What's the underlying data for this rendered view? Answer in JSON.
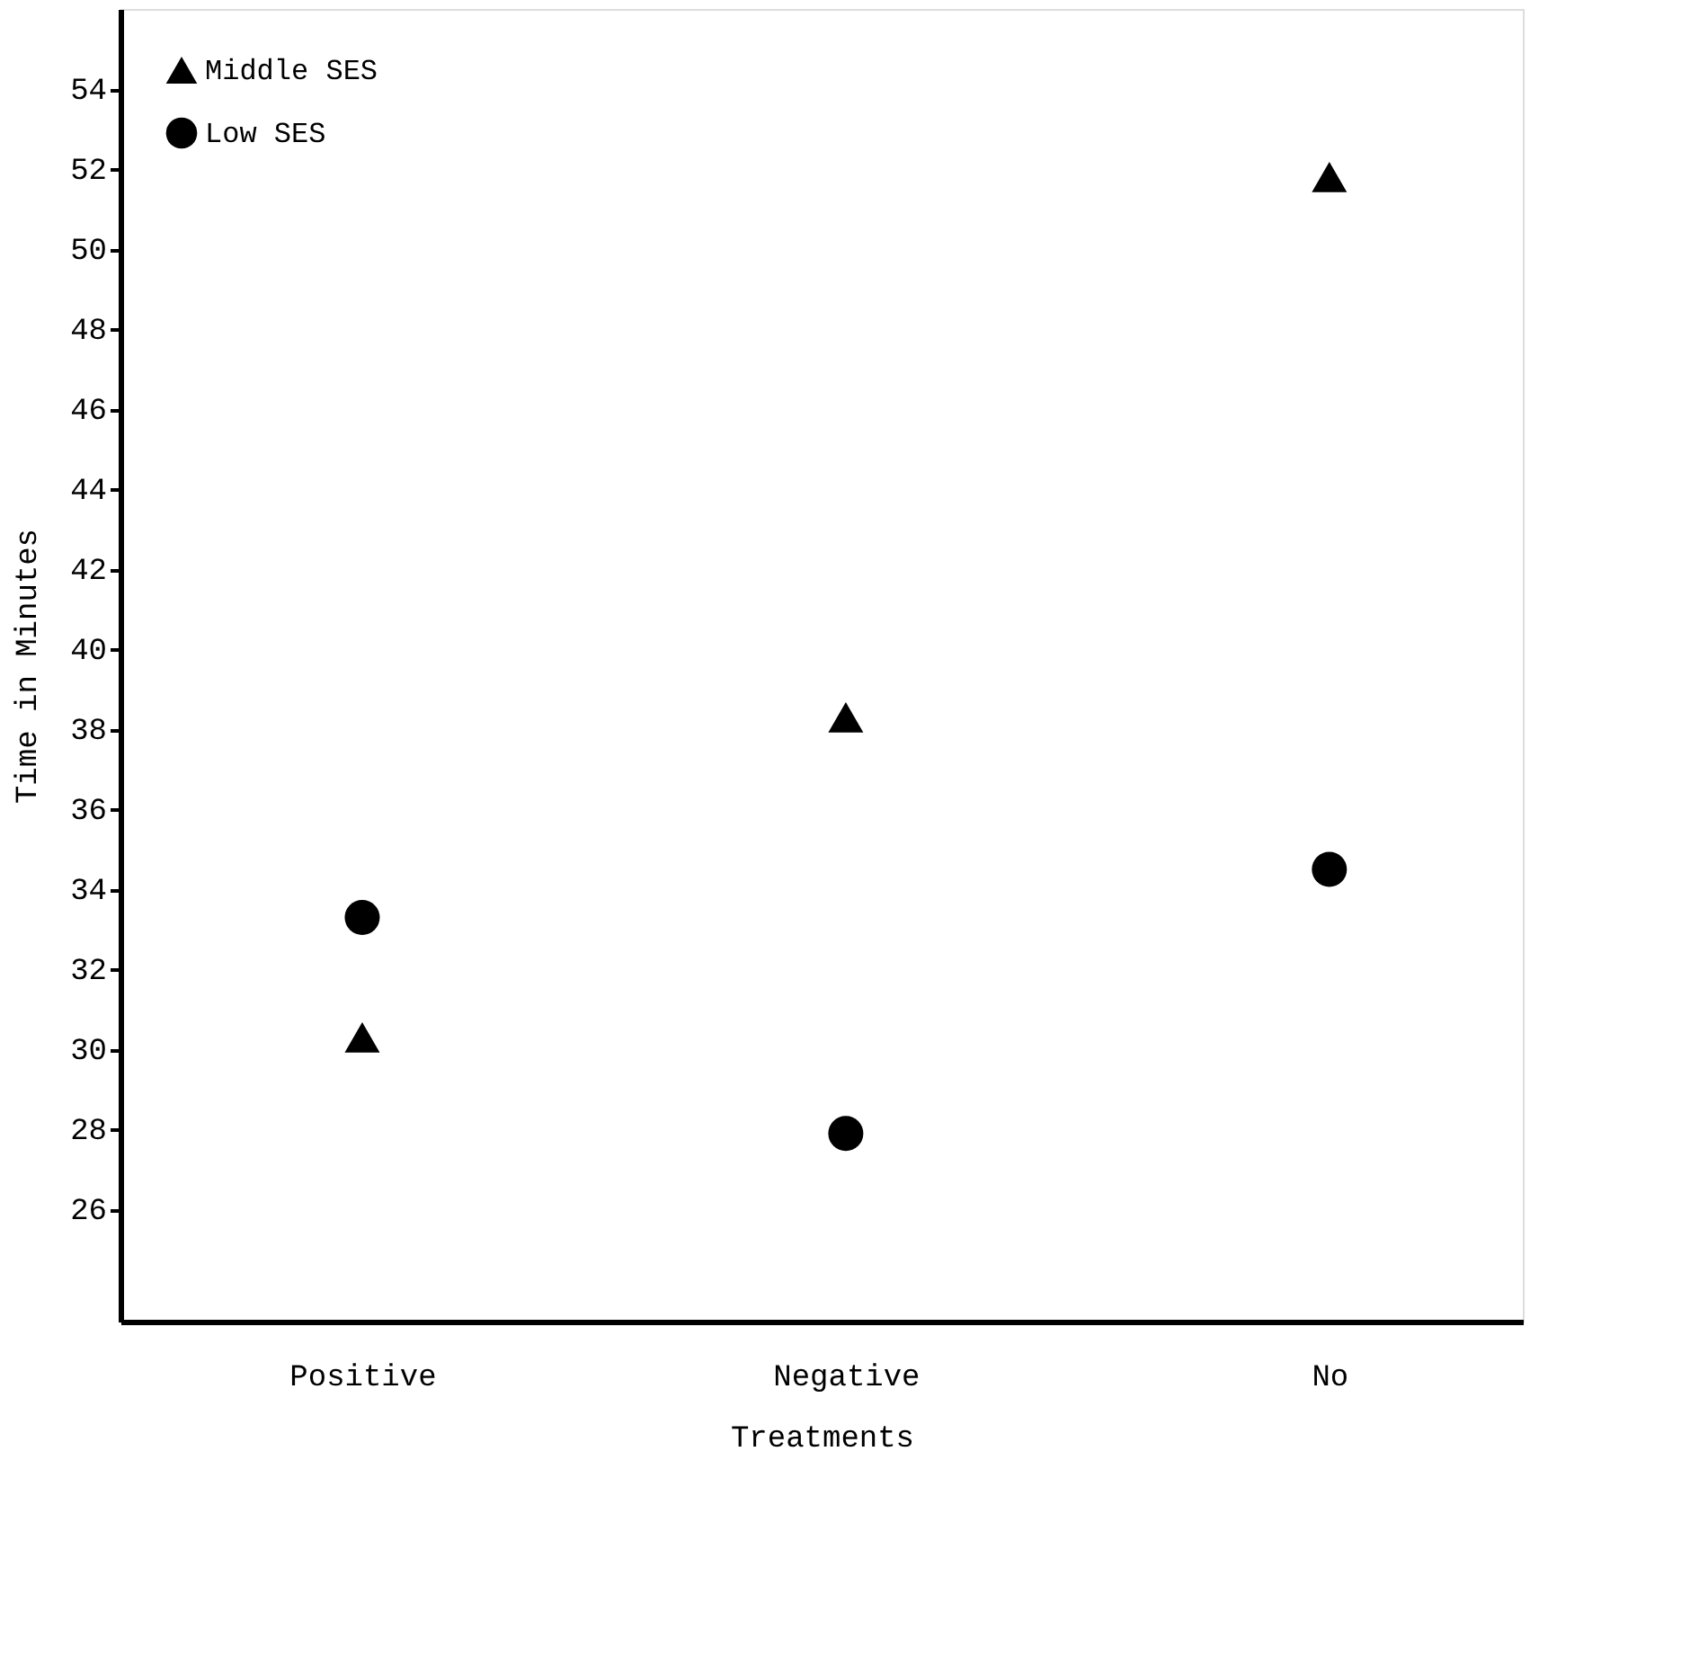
{
  "chart_data": {
    "type": "scatter",
    "xlabel": "Treatments",
    "ylabel": "Time in Minutes",
    "categories": [
      "Positive",
      "Negative",
      "No"
    ],
    "series": [
      {
        "name": "Middle SES",
        "color": "#000000",
        "marker": "triangle",
        "values": [
          30.3,
          38.3,
          51.8
        ]
      },
      {
        "name": "Low SES",
        "color": "#000000",
        "marker": "circle",
        "values": [
          33.3,
          27.9,
          34.5
        ]
      }
    ],
    "ylim": [
      23.2,
      56
    ],
    "yticks": [
      26,
      28,
      30,
      32,
      34,
      36,
      38,
      40,
      42,
      44,
      46,
      48,
      50,
      52,
      54
    ],
    "grid": false,
    "legend": "top left"
  }
}
